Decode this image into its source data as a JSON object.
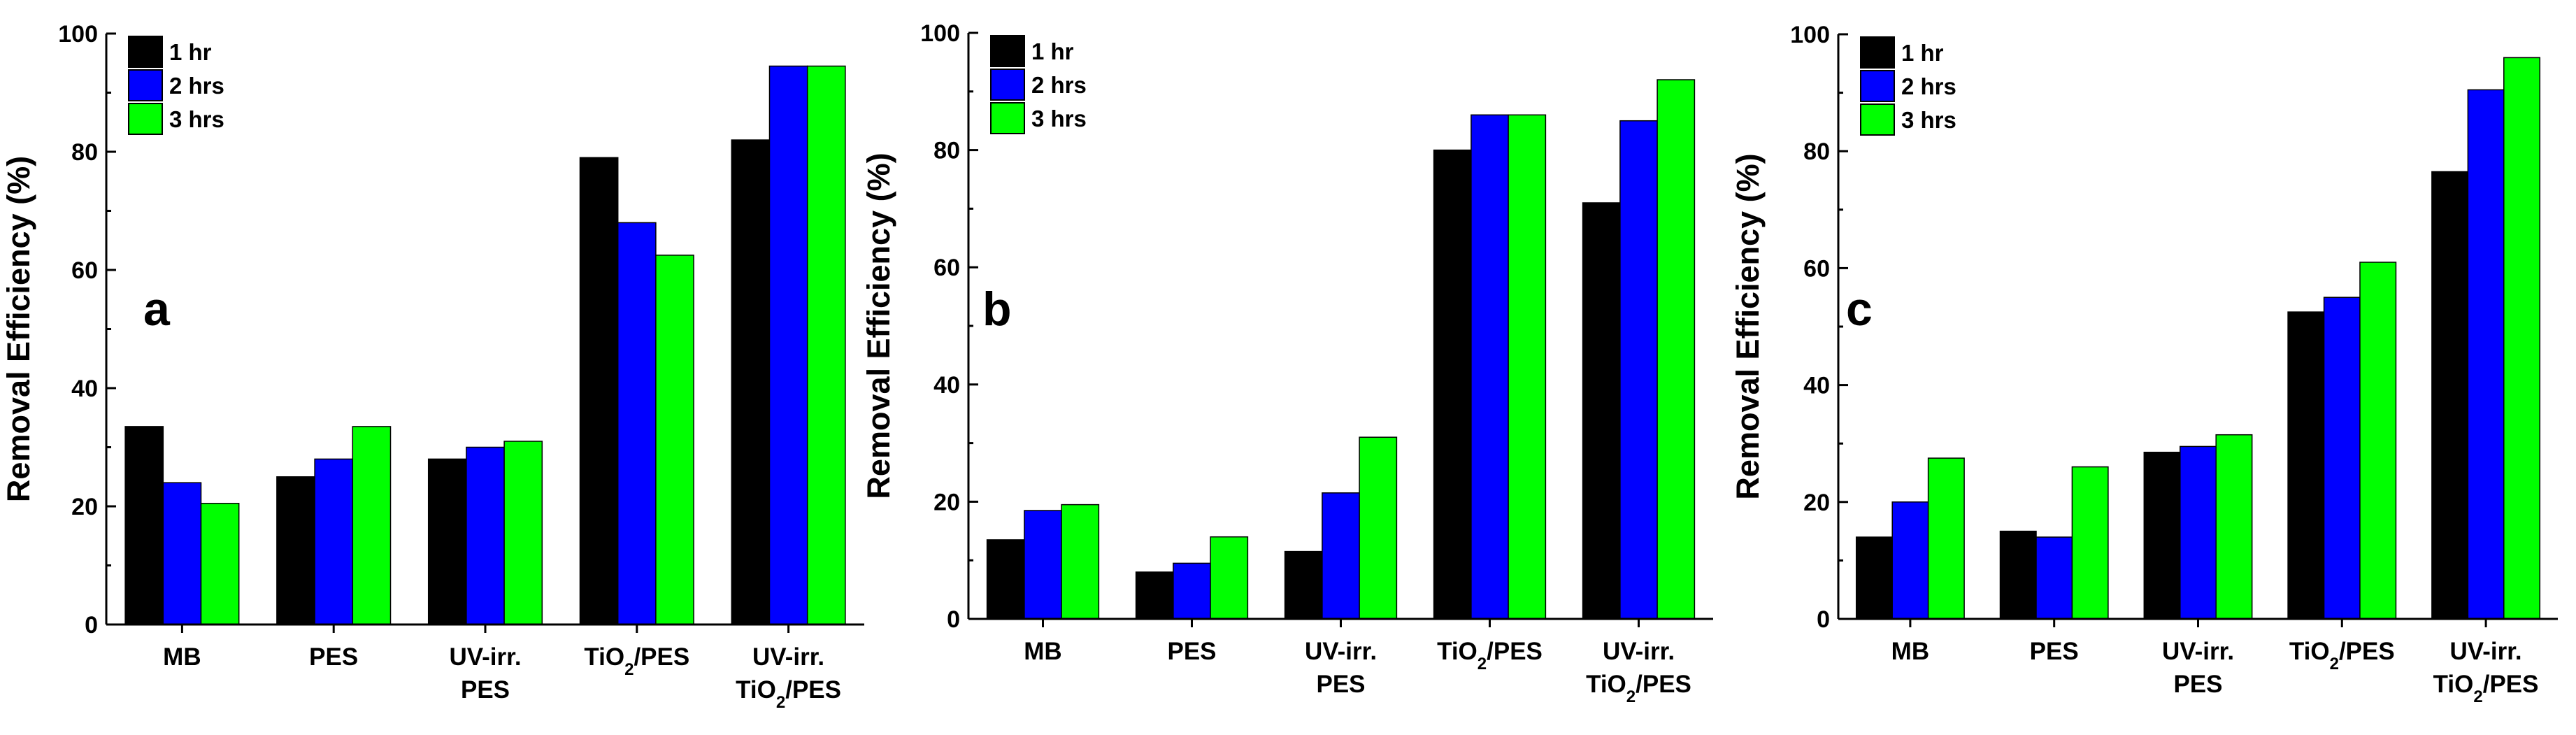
{
  "chart_data": [
    {
      "type": "bar",
      "panel_label": "a",
      "ylabel": "Removal Efficiency (%)",
      "ylim": [
        0,
        100
      ],
      "yticks": [
        0,
        20,
        40,
        60,
        80,
        100
      ],
      "categories": [
        {
          "line1": "MB",
          "line2": ""
        },
        {
          "line1": "PES",
          "line2": ""
        },
        {
          "line1": "UV-irr.",
          "line2": "PES"
        },
        {
          "line1": "TiO",
          "sub": "2",
          "post": "/PES",
          "line2": ""
        },
        {
          "line1": "UV-irr.",
          "line2": "TiO",
          "sub2": "2",
          "post2": "/PES"
        }
      ],
      "series": [
        {
          "name": "1 hr",
          "color": "#000000",
          "values": [
            33.5,
            25,
            28,
            79,
            82
          ]
        },
        {
          "name": "2 hrs",
          "color": "#0000FF",
          "values": [
            24,
            28,
            30,
            68,
            94.5
          ]
        },
        {
          "name": "3 hrs",
          "color": "#00FF00",
          "values": [
            20.5,
            33.5,
            31,
            62.5,
            94.5
          ]
        }
      ],
      "legend_position": "top-left"
    },
    {
      "type": "bar",
      "panel_label": "b",
      "ylabel": "Removal Efficiency (%)",
      "ylim": [
        0,
        100
      ],
      "yticks": [
        0,
        20,
        40,
        60,
        80,
        100
      ],
      "categories": [
        {
          "line1": "MB",
          "line2": ""
        },
        {
          "line1": "PES",
          "line2": ""
        },
        {
          "line1": "UV-irr.",
          "line2": "PES"
        },
        {
          "line1": "TiO",
          "sub": "2",
          "post": "/PES",
          "line2": ""
        },
        {
          "line1": "UV-irr.",
          "line2": "TiO",
          "sub2": "2",
          "post2": "/PES"
        }
      ],
      "series": [
        {
          "name": "1 hr",
          "color": "#000000",
          "values": [
            13.5,
            8,
            11.5,
            80,
            71
          ]
        },
        {
          "name": "2 hrs",
          "color": "#0000FF",
          "values": [
            18.5,
            9.5,
            21.5,
            86,
            85
          ]
        },
        {
          "name": "3 hrs",
          "color": "#00FF00",
          "values": [
            19.5,
            14,
            31,
            86,
            92
          ]
        }
      ],
      "legend_position": "top-left"
    },
    {
      "type": "bar",
      "panel_label": "c",
      "ylabel": "Removal Efficiency (%)",
      "ylim": [
        0,
        100
      ],
      "yticks": [
        0,
        20,
        40,
        60,
        80,
        100
      ],
      "categories": [
        {
          "line1": "MB",
          "line2": ""
        },
        {
          "line1": "PES",
          "line2": ""
        },
        {
          "line1": "UV-irr.",
          "line2": "PES"
        },
        {
          "line1": "TiO",
          "sub": "2",
          "post": "/PES",
          "line2": ""
        },
        {
          "line1": "UV-irr.",
          "line2": "TiO",
          "sub2": "2",
          "post2": "/PES"
        }
      ],
      "series": [
        {
          "name": "1 hr",
          "color": "#000000",
          "values": [
            14,
            15,
            28.5,
            52.5,
            76.5
          ]
        },
        {
          "name": "2 hrs",
          "color": "#0000FF",
          "values": [
            20,
            14,
            29.5,
            55,
            90.5
          ]
        },
        {
          "name": "3 hrs",
          "color": "#00FF00",
          "values": [
            27.5,
            26,
            31.5,
            61,
            96
          ]
        }
      ],
      "legend_position": "top-left"
    }
  ]
}
